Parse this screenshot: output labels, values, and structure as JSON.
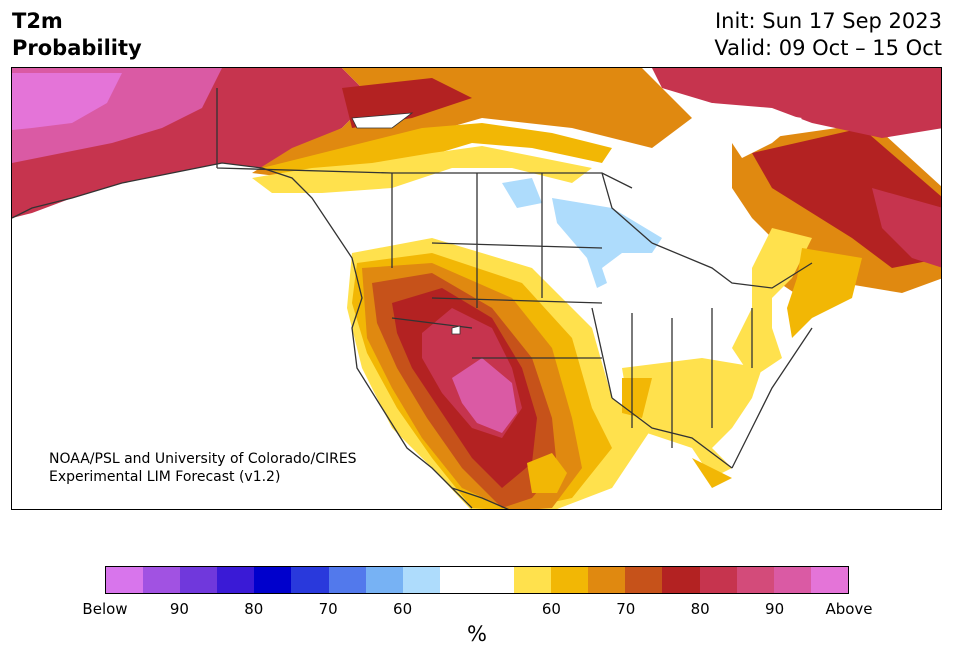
{
  "title": {
    "left_line1": "T2m",
    "left_line2": "Probability",
    "right_line1": "Init: Sun 17 Sep 2023",
    "right_line2": "Valid: 09 Oct – 15 Oct"
  },
  "credit": {
    "line1": "NOAA/PSL and University of Colorado/CIRES",
    "line2": "Experimental LIM Forecast (v1.2)"
  },
  "colorbar": {
    "colors": [
      "#d875ec",
      "#a152e2",
      "#7038dc",
      "#3a1ad6",
      "#0000cc",
      "#2939dc",
      "#5279ec",
      "#77b2f4",
      "#aedcfc",
      "#ffffff",
      "#ffffff",
      "#ffe14d",
      "#f2b705",
      "#e08910",
      "#c6521a",
      "#b32222",
      "#c6344e",
      "#d34b7a",
      "#da5aa4",
      "#e474d8"
    ],
    "tick_labels": [
      "Below",
      "90",
      "80",
      "70",
      "60",
      "60",
      "70",
      "80",
      "90",
      "Above"
    ],
    "unit": "%"
  },
  "map_colors": {
    "above_extreme": "#da5aa4",
    "above_90": "#c6344e",
    "above_80": "#b32222",
    "above_70": "#c6521a",
    "above_65": "#e08910",
    "above_60": "#f2b705",
    "above_55": "#ffe14d",
    "below_55": "#aedcfc",
    "neutral": "#ffffff"
  }
}
